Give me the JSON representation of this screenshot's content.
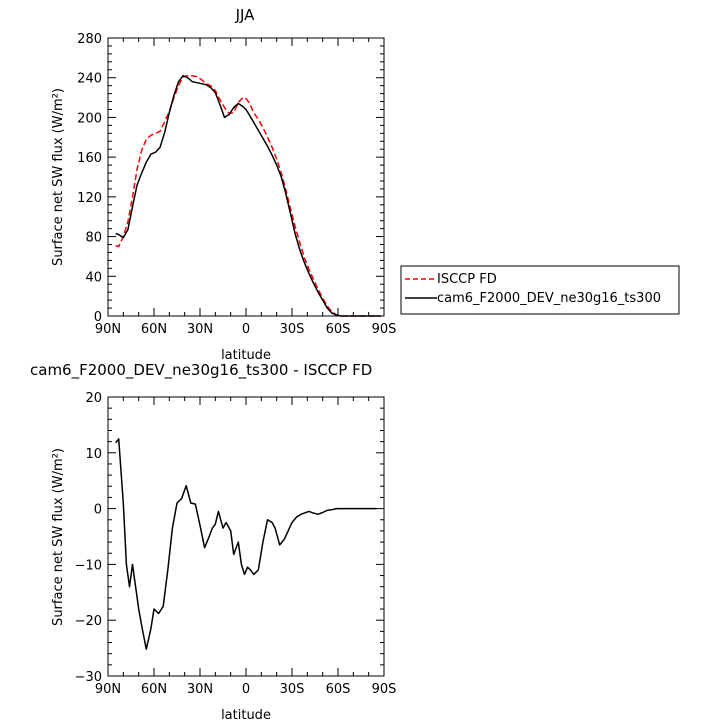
{
  "chart_data": [
    {
      "type": "line",
      "title": "JJA",
      "xlabel": "latitude",
      "ylabel": "Surface net SW flux (W/m²)",
      "xlim": [
        90,
        -90
      ],
      "ylim": [
        0,
        280
      ],
      "x_ticks": [
        90,
        60,
        30,
        0,
        -30,
        -60,
        -90
      ],
      "x_tick_labels": [
        "90N",
        "60N",
        "30N",
        "0",
        "30S",
        "60S",
        "90S"
      ],
      "y_ticks": [
        0,
        40,
        80,
        120,
        160,
        200,
        240,
        280
      ],
      "y_tick_labels": [
        "0",
        "40",
        "80",
        "120",
        "160",
        "200",
        "240",
        "280"
      ],
      "legend_position": "right",
      "series": [
        {
          "name": "ISCCP FD",
          "color": "#ff0000",
          "dash": "dashed",
          "x": [
            85,
            83,
            80,
            77,
            74,
            71,
            68,
            65,
            62,
            59,
            56,
            53,
            50,
            47,
            44,
            41,
            38,
            35,
            32,
            29,
            26,
            23,
            20,
            17,
            14,
            11,
            8,
            5,
            2,
            0,
            -2,
            -5,
            -8,
            -11,
            -14,
            -17,
            -20,
            -23,
            -26,
            -29,
            -32,
            -35,
            -38,
            -41,
            -44,
            -47,
            -50,
            -53,
            -56,
            -59,
            -62,
            -65,
            -68,
            -72,
            -76,
            -80,
            -85,
            -88
          ],
          "y": [
            71,
            70,
            80,
            95,
            120,
            148,
            167,
            178,
            182,
            184,
            186,
            196,
            206,
            220,
            232,
            241,
            242,
            242,
            241,
            238,
            234,
            232,
            227,
            218,
            210,
            204,
            205,
            215,
            220,
            219,
            215,
            205,
            198,
            190,
            180,
            170,
            158,
            144,
            127,
            108,
            90,
            74,
            59,
            47,
            37,
            27,
            18,
            10,
            4,
            1,
            0,
            0,
            0,
            0,
            0,
            0,
            0,
            0
          ]
        },
        {
          "name": "cam6_F2000_DEV_ne30g16_ts300",
          "color": "#000000",
          "dash": "solid",
          "x": [
            85,
            83,
            80,
            77,
            74,
            71,
            68,
            65,
            62,
            59,
            56,
            53,
            50,
            47,
            44,
            41,
            38,
            35,
            32,
            29,
            26,
            23,
            20,
            17,
            14,
            11,
            8,
            5,
            2,
            0,
            -2,
            -5,
            -8,
            -11,
            -14,
            -17,
            -20,
            -23,
            -26,
            -29,
            -32,
            -35,
            -38,
            -41,
            -44,
            -47,
            -50,
            -53,
            -56,
            -59,
            -62,
            -65,
            -68,
            -72,
            -76,
            -80,
            -85,
            -88
          ],
          "y": [
            83,
            82,
            79,
            87,
            110,
            132,
            144,
            155,
            163,
            165,
            170,
            185,
            205,
            222,
            236,
            242,
            240,
            236,
            235,
            234,
            233,
            230,
            225,
            213,
            200,
            203,
            210,
            214,
            211,
            208,
            203,
            195,
            187,
            179,
            171,
            162,
            152,
            140,
            123,
            103,
            83,
            67,
            54,
            43,
            33,
            24,
            16,
            8,
            3,
            1,
            0,
            0,
            0,
            0,
            0,
            0,
            0,
            0
          ]
        }
      ]
    },
    {
      "type": "line",
      "title": "cam6_F2000_DEV_ne30g16_ts300 - ISCCP FD",
      "xlabel": "latitude",
      "ylabel": "Surface net SW flux (W/m²)",
      "xlim": [
        90,
        -90
      ],
      "ylim": [
        -30,
        20
      ],
      "x_ticks": [
        90,
        60,
        30,
        0,
        -30,
        -60,
        -90
      ],
      "x_tick_labels": [
        "90N",
        "60N",
        "30N",
        "0",
        "30S",
        "60S",
        "90S"
      ],
      "y_ticks": [
        -30,
        -20,
        -10,
        0,
        10,
        20
      ],
      "y_tick_labels": [
        "−30",
        "−20",
        "−10",
        "0",
        "10",
        "20"
      ],
      "series": [
        {
          "color": "#000000",
          "dash": "solid",
          "x": [
            85,
            83,
            80,
            78,
            76,
            74,
            72,
            70,
            68,
            65,
            62,
            60,
            57,
            54,
            51,
            48,
            45,
            42,
            39,
            36,
            33,
            30,
            27,
            24,
            22,
            20,
            18,
            15,
            13,
            10,
            8,
            5,
            3,
            1,
            -1,
            -3,
            -5,
            -8,
            -11,
            -14,
            -17,
            -19,
            -22,
            -25,
            -27,
            -30,
            -33,
            -36,
            -38,
            -41,
            -44,
            -47,
            -50,
            -53,
            -56,
            -59,
            -62,
            -65,
            -68,
            -72,
            -76,
            -80,
            -85
          ],
          "y": [
            11.8,
            12.5,
            1,
            -10,
            -14,
            -10,
            -14,
            -18,
            -21,
            -25.2,
            -21.5,
            -18,
            -18.8,
            -17.5,
            -11,
            -3.5,
            1,
            1.8,
            4.1,
            1,
            0.8,
            -3,
            -7,
            -5,
            -3.5,
            -2.8,
            -0.5,
            -3.5,
            -2.5,
            -4,
            -8.2,
            -6,
            -10,
            -11.8,
            -10.5,
            -11,
            -11.8,
            -11,
            -6,
            -2,
            -2.5,
            -3.5,
            -6.5,
            -5.5,
            -4.3,
            -2.5,
            -1.5,
            -1,
            -0.8,
            -0.5,
            -0.8,
            -1,
            -0.7,
            -0.3,
            -0.2,
            0,
            0,
            0,
            0,
            0,
            0,
            0,
            0
          ]
        }
      ]
    }
  ]
}
